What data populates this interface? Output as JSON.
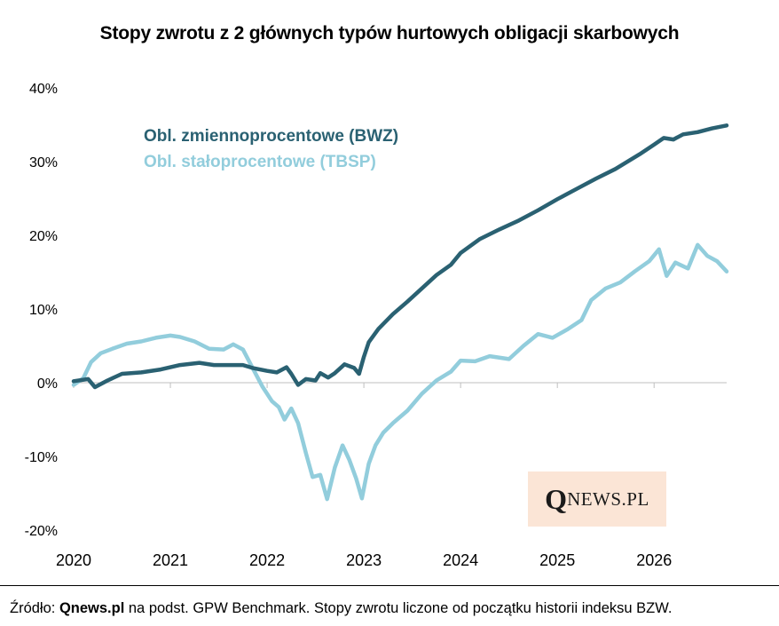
{
  "chart_data": {
    "type": "line",
    "title": "Stopy zwrotu z 2 głównych typów hurtowych obligacji skarbowych",
    "ylim": [
      -20,
      40
    ],
    "yticks": [
      40,
      30,
      20,
      10,
      0,
      -10,
      -20
    ],
    "ytick_labels": [
      "40%",
      "30%",
      "20%",
      "10%",
      "0%",
      "-10%",
      "-20%"
    ],
    "xlim": [
      2020.0,
      2026.75
    ],
    "xticks": [
      2020,
      2021,
      2022,
      2023,
      2024,
      2025,
      2026
    ],
    "xtick_labels": [
      "2020",
      "2021",
      "2022",
      "2023",
      "2024",
      "2025",
      "2026"
    ],
    "grid": false,
    "legend_placement": "top-left",
    "series": [
      {
        "name": "Obl. zmiennoprocentowe (BWZ)",
        "color": "#2a6172",
        "points": [
          [
            2020.0,
            0.2
          ],
          [
            2020.15,
            0.5
          ],
          [
            2020.22,
            -0.6
          ],
          [
            2020.35,
            0.3
          ],
          [
            2020.5,
            1.2
          ],
          [
            2020.7,
            1.4
          ],
          [
            2020.9,
            1.8
          ],
          [
            2021.1,
            2.4
          ],
          [
            2021.3,
            2.7
          ],
          [
            2021.45,
            2.4
          ],
          [
            2021.6,
            2.4
          ],
          [
            2021.75,
            2.4
          ],
          [
            2021.85,
            2.0
          ],
          [
            2022.0,
            1.6
          ],
          [
            2022.1,
            1.4
          ],
          [
            2022.2,
            2.1
          ],
          [
            2022.25,
            1.2
          ],
          [
            2022.32,
            -0.3
          ],
          [
            2022.4,
            0.5
          ],
          [
            2022.5,
            0.3
          ],
          [
            2022.55,
            1.3
          ],
          [
            2022.63,
            0.7
          ],
          [
            2022.7,
            1.3
          ],
          [
            2022.8,
            2.5
          ],
          [
            2022.9,
            2.0
          ],
          [
            2022.95,
            1.2
          ],
          [
            2023.0,
            3.5
          ],
          [
            2023.05,
            5.5
          ],
          [
            2023.15,
            7.3
          ],
          [
            2023.3,
            9.3
          ],
          [
            2023.45,
            11.0
          ],
          [
            2023.6,
            12.8
          ],
          [
            2023.75,
            14.6
          ],
          [
            2023.9,
            16.0
          ],
          [
            2024.0,
            17.6
          ],
          [
            2024.2,
            19.5
          ],
          [
            2024.4,
            20.8
          ],
          [
            2024.6,
            22.0
          ],
          [
            2024.8,
            23.4
          ],
          [
            2025.0,
            24.9
          ],
          [
            2025.2,
            26.3
          ],
          [
            2025.4,
            27.7
          ],
          [
            2025.6,
            29.0
          ],
          [
            2025.85,
            31.0
          ],
          [
            2026.0,
            32.3
          ],
          [
            2026.1,
            33.2
          ],
          [
            2026.2,
            33.0
          ],
          [
            2026.3,
            33.7
          ],
          [
            2026.45,
            34.0
          ],
          [
            2026.6,
            34.5
          ],
          [
            2026.75,
            34.9
          ]
        ]
      },
      {
        "name": "Obl. stałoprocentowe (TBSP)",
        "color": "#92cddc",
        "points": [
          [
            2020.0,
            -0.3
          ],
          [
            2020.1,
            0.6
          ],
          [
            2020.18,
            2.8
          ],
          [
            2020.28,
            4.0
          ],
          [
            2020.4,
            4.6
          ],
          [
            2020.55,
            5.3
          ],
          [
            2020.7,
            5.6
          ],
          [
            2020.85,
            6.1
          ],
          [
            2021.0,
            6.4
          ],
          [
            2021.1,
            6.2
          ],
          [
            2021.25,
            5.6
          ],
          [
            2021.4,
            4.6
          ],
          [
            2021.55,
            4.5
          ],
          [
            2021.65,
            5.2
          ],
          [
            2021.75,
            4.5
          ],
          [
            2021.85,
            2.0
          ],
          [
            2021.95,
            -0.5
          ],
          [
            2022.05,
            -2.5
          ],
          [
            2022.12,
            -3.3
          ],
          [
            2022.18,
            -5.0
          ],
          [
            2022.25,
            -3.5
          ],
          [
            2022.32,
            -5.5
          ],
          [
            2022.4,
            -9.5
          ],
          [
            2022.47,
            -12.8
          ],
          [
            2022.55,
            -12.5
          ],
          [
            2022.62,
            -15.8
          ],
          [
            2022.7,
            -11.5
          ],
          [
            2022.78,
            -8.5
          ],
          [
            2022.85,
            -10.5
          ],
          [
            2022.92,
            -13.0
          ],
          [
            2022.98,
            -15.7
          ],
          [
            2023.05,
            -11.0
          ],
          [
            2023.12,
            -8.5
          ],
          [
            2023.2,
            -6.8
          ],
          [
            2023.3,
            -5.5
          ],
          [
            2023.45,
            -3.8
          ],
          [
            2023.6,
            -1.5
          ],
          [
            2023.75,
            0.3
          ],
          [
            2023.9,
            1.5
          ],
          [
            2024.0,
            3.0
          ],
          [
            2024.15,
            2.9
          ],
          [
            2024.3,
            3.6
          ],
          [
            2024.5,
            3.2
          ],
          [
            2024.65,
            5.0
          ],
          [
            2024.8,
            6.6
          ],
          [
            2024.95,
            6.1
          ],
          [
            2025.1,
            7.2
          ],
          [
            2025.25,
            8.5
          ],
          [
            2025.35,
            11.2
          ],
          [
            2025.5,
            12.8
          ],
          [
            2025.65,
            13.6
          ],
          [
            2025.8,
            15.1
          ],
          [
            2025.95,
            16.5
          ],
          [
            2026.05,
            18.1
          ],
          [
            2026.13,
            14.5
          ],
          [
            2026.22,
            16.3
          ],
          [
            2026.35,
            15.5
          ],
          [
            2026.45,
            18.7
          ],
          [
            2026.55,
            17.2
          ],
          [
            2026.65,
            16.5
          ],
          [
            2026.75,
            15.1
          ]
        ]
      }
    ]
  },
  "logo": {
    "big": "Q",
    "small": "NEWS.PL"
  },
  "source": {
    "prefix": "Źródło: ",
    "brand": "Qnews.pl",
    "rest": " na podst. GPW Benchmark. Stopy zwrotu liczone od początku historii indeksu BZW."
  }
}
